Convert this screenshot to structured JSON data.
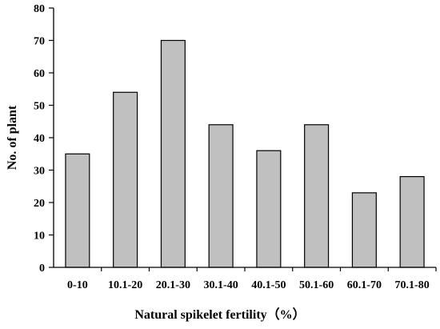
{
  "chart_data": {
    "type": "bar",
    "categories": [
      "0-10",
      "10.1-20",
      "20.1-30",
      "30.1-40",
      "40.1-50",
      "50.1-60",
      "60.1-70",
      "70.1-80"
    ],
    "values": [
      35,
      54,
      70,
      44,
      36,
      44,
      23,
      28
    ],
    "xlabel": "Natural spikelet fertility（%）",
    "ylabel": "No. of plant",
    "ylim": [
      0,
      80
    ],
    "yticks": [
      0,
      10,
      20,
      30,
      40,
      50,
      60,
      70,
      80
    ],
    "grid": false,
    "legend": "none",
    "bar_color": "#c0c0c0",
    "bar_edge_color": "#000000"
  }
}
